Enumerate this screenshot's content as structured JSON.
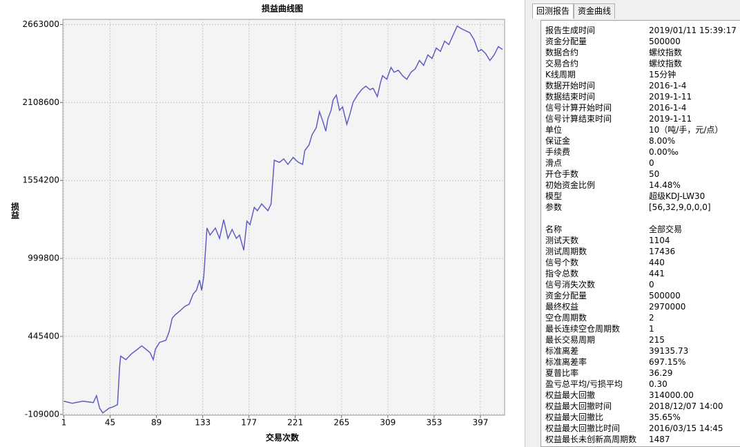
{
  "chart_data": {
    "type": "line",
    "title": "损益曲线图",
    "xlabel": "交易次数",
    "ylabel": "损益",
    "x": [
      1,
      9,
      19,
      29,
      32,
      35,
      38,
      44,
      48,
      52,
      54,
      55,
      60,
      65,
      71,
      75,
      79,
      83,
      86,
      88,
      92,
      98,
      101,
      104,
      107,
      111,
      116,
      120,
      124,
      127,
      130,
      132,
      134,
      137,
      140,
      145,
      149,
      153,
      157,
      161,
      165,
      168,
      172,
      175,
      178,
      182,
      185,
      189,
      195,
      198,
      201,
      206,
      210,
      214,
      219,
      224,
      228,
      230,
      234,
      237,
      241,
      244,
      247,
      250,
      252,
      255,
      257,
      260,
      263,
      266,
      270,
      273,
      276,
      280,
      284,
      288,
      292,
      295,
      299,
      302,
      304,
      308,
      312,
      315,
      319,
      323,
      327,
      331,
      335,
      339,
      343,
      347,
      351,
      355,
      359,
      363,
      367,
      372,
      375,
      379,
      383,
      387,
      391,
      395,
      398,
      402,
      406,
      410,
      414,
      418
    ],
    "values": [
      -15000,
      -30000,
      -15000,
      -25000,
      24000,
      -65000,
      -99000,
      -65000,
      -55000,
      -40000,
      231000,
      305000,
      280000,
      320000,
      354000,
      378000,
      354000,
      329000,
      280000,
      354000,
      403000,
      418000,
      477000,
      575000,
      600000,
      625000,
      659000,
      674000,
      748000,
      772000,
      846000,
      772000,
      871000,
      1216000,
      1166000,
      1216000,
      1142000,
      1275000,
      1142000,
      1206000,
      1142000,
      1166000,
      1058000,
      1265000,
      1240000,
      1363000,
      1339000,
      1388000,
      1339000,
      1388000,
      1698000,
      1683000,
      1708000,
      1669000,
      1718000,
      1683000,
      1669000,
      1767000,
      1806000,
      1880000,
      1930000,
      2043000,
      1979000,
      1905000,
      1993000,
      2053000,
      2127000,
      2161000,
      2053000,
      2077000,
      1954000,
      2028000,
      2112000,
      2161000,
      2200000,
      2225000,
      2200000,
      2210000,
      2151000,
      2250000,
      2299000,
      2274000,
      2358000,
      2324000,
      2338000,
      2299000,
      2274000,
      2324000,
      2348000,
      2407000,
      2373000,
      2447000,
      2422000,
      2496000,
      2472000,
      2545000,
      2520000,
      2604000,
      2653000,
      2633000,
      2619000,
      2604000,
      2555000,
      2472000,
      2486000,
      2456000,
      2407000,
      2447000,
      2506000,
      2486000
    ],
    "color": "#5c5cc4",
    "xlim": [
      0,
      420
    ],
    "xticks": [
      1,
      45,
      89,
      133,
      177,
      221,
      265,
      309,
      353,
      397
    ],
    "ylim": [
      -115000,
      2700000
    ],
    "yticks": [
      -109000,
      445400,
      999800,
      1554200,
      2108600,
      2663000
    ],
    "grid": true
  },
  "report": {
    "tabs": [
      "回测报告",
      "资金曲线"
    ],
    "section1": [
      [
        "报告生成时间",
        "2019/01/11 15:39:17"
      ],
      [
        "资金分配量",
        "500000"
      ],
      [
        "数据合约",
        "螺纹指数"
      ],
      [
        "交易合约",
        "螺纹指数"
      ],
      [
        "K线周期",
        "15分钟"
      ],
      [
        "数据开始时间",
        "2016-1-4"
      ],
      [
        "数据结束时间",
        "2019-1-11"
      ],
      [
        "信号计算开始时间",
        "2016-1-4"
      ],
      [
        "信号计算结束时间",
        "2019-1-11"
      ],
      [
        "单位",
        "10（吨/手，元/点）"
      ],
      [
        "保证金",
        "8.00%"
      ],
      [
        "手续费",
        "0.00‰"
      ],
      [
        "滑点",
        "0"
      ],
      [
        "开仓手数",
        "50"
      ],
      [
        "初始资金比例",
        "14.48%"
      ],
      [
        "模型",
        "超级KDJ-LW30"
      ],
      [
        "参数",
        "[56,32,9,0,0,0]"
      ]
    ],
    "section2": [
      [
        "名称",
        "全部交易"
      ],
      [
        "测试天数",
        "1104"
      ],
      [
        "测试周期数",
        "17436"
      ],
      [
        "信号个数",
        "440"
      ],
      [
        "指令总数",
        "441"
      ],
      [
        "信号消失次数",
        "0"
      ],
      [
        "资金分配量",
        "500000"
      ],
      [
        "最终权益",
        "2970000"
      ],
      [
        "空仓周期数",
        "2"
      ],
      [
        "最长连续空仓周期数",
        "1"
      ],
      [
        "最长交易周期",
        "215"
      ],
      [
        "标准离差",
        "39135.73"
      ],
      [
        "标准离差率",
        "697.15%"
      ],
      [
        "夏普比率",
        "36.29"
      ],
      [
        "盈亏总平均/亏损平均",
        "0.30"
      ],
      [
        "权益最大回撤",
        "314000.00"
      ],
      [
        "权益最大回撤时间",
        "2018/12/07 14:00"
      ],
      [
        "权益最大回撤比",
        "35.65%"
      ],
      [
        "权益最大回撤比时间",
        "2016/03/15 14:45"
      ],
      [
        "权益最长未创新高周期数",
        "1487"
      ]
    ]
  }
}
